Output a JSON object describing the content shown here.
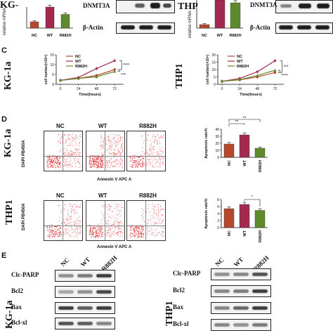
{
  "panel_top": {
    "left_rowlabel": "KG-",
    "left_ylabel": "relative mRNA",
    "right_rowlabel": "THP",
    "right_ylabel": "relative mRNA",
    "categories": [
      "NC",
      "WT",
      "R882H"
    ],
    "wb_dnmt3a": "DNMT3A",
    "wb_actin": "β-Actin"
  },
  "panel_c": {
    "letter": "C",
    "left": {
      "rowlabel": "KG-1a",
      "ylabel": "cell number(×10⁴)",
      "xlabel": "Time(hours)",
      "yticks": [
        "0",
        "5",
        "10",
        "15"
      ],
      "xticks": [
        "0",
        "24",
        "48",
        "72"
      ],
      "legend": [
        "NC",
        "WT",
        "R882H"
      ],
      "sig1": "****",
      "sig2": "***"
    },
    "right": {
      "rowlabel": "THP1",
      "ylabel": "cell number(×10⁴)",
      "xlabel": "Time(hours)",
      "yticks": [
        "0",
        "5",
        "10",
        "15",
        "20"
      ],
      "xticks": [
        "0",
        "24",
        "48",
        "72"
      ],
      "legend": [
        "NC",
        "WT",
        "R882H"
      ],
      "sig1": "***",
      "sig2": "****"
    }
  },
  "panel_d": {
    "letter": "D",
    "row1_label": "KG-1a",
    "row2_label": "THP1",
    "flow_ylabel": "DAPI PB450A",
    "flow_xlabel": "Annexin V APC A",
    "flow_titles": [
      "NC",
      "WT",
      "R882H"
    ],
    "bar_ylabel": "Apoptosis rate%",
    "bar_categories": [
      "NC",
      "WT",
      "R882H"
    ],
    "row1_yticks": [
      "0",
      "10",
      "20",
      "30",
      "40"
    ],
    "row2_yticks": [
      "0",
      "2",
      "4",
      "6",
      "8"
    ],
    "row1_sig": [
      "**",
      "**"
    ],
    "row2_sig": [
      "*"
    ]
  },
  "panel_e": {
    "letter": "E",
    "left_rowlabel": "KG-1a",
    "right_rowlabel": "THP1",
    "lanes": [
      "NC",
      "WT",
      "R882H"
    ],
    "proteins": [
      "Clc-PARP",
      "Bcl2",
      "Bax",
      "Bcl-xl"
    ]
  },
  "chart_data": [
    {
      "type": "bar",
      "categories": [
        "NC",
        "WT",
        "R882H"
      ],
      "values": [
        0.6,
        2.0,
        1.3
      ],
      "colors": [
        "#b5482d",
        "#a3294f",
        "#5f8a2c"
      ]
    },
    {
      "type": "bar",
      "categories": [
        "NC",
        "WT",
        "R882H"
      ],
      "values": [
        0.25,
        2.0,
        1.8
      ],
      "colors": [
        "#b5482d",
        "#a3294f",
        "#5f8a2c"
      ]
    },
    {
      "type": "line",
      "x": [
        0,
        24,
        48,
        72
      ],
      "xlabel": "Time(hours)",
      "ylabel": "cell number(×10⁴)",
      "ylim": [
        0,
        15
      ],
      "series": [
        {
          "name": "NC",
          "values": [
            2,
            3,
            4.5,
            7.5
          ]
        },
        {
          "name": "WT",
          "values": [
            2,
            3.5,
            8,
            12
          ]
        },
        {
          "name": "R882H",
          "values": [
            2,
            3,
            3.8,
            6.5
          ]
        }
      ],
      "colors": [
        "#b5482d",
        "#a3294f",
        "#5f8a2c"
      ]
    },
    {
      "type": "line",
      "x": [
        0,
        24,
        48,
        72
      ],
      "xlabel": "Time(hours)",
      "ylabel": "cell number(×10⁴)",
      "ylim": [
        0,
        20
      ],
      "series": [
        {
          "name": "NC",
          "values": [
            2,
            3,
            5,
            8
          ]
        },
        {
          "name": "WT",
          "values": [
            2,
            4,
            8.5,
            16
          ]
        },
        {
          "name": "R882H",
          "values": [
            2,
            3.2,
            6,
            9.5
          ]
        }
      ],
      "colors": [
        "#b5482d",
        "#a3294f",
        "#5f8a2c"
      ]
    },
    {
      "type": "bar",
      "categories": [
        "NC",
        "WT",
        "R882H"
      ],
      "values": [
        19,
        32,
        13
      ],
      "ylabel": "Apoptosis rate%",
      "ylim": [
        0,
        40
      ],
      "colors": [
        "#b5482d",
        "#a3294f",
        "#5f8a2c"
      ]
    },
    {
      "type": "bar",
      "categories": [
        "NC",
        "WT",
        "R882H"
      ],
      "values": [
        5.4,
        6.6,
        4.9
      ],
      "ylabel": "Apoptosis rate%",
      "ylim": [
        0,
        8
      ],
      "colors": [
        "#b5482d",
        "#a3294f",
        "#5f8a2c"
      ]
    }
  ]
}
